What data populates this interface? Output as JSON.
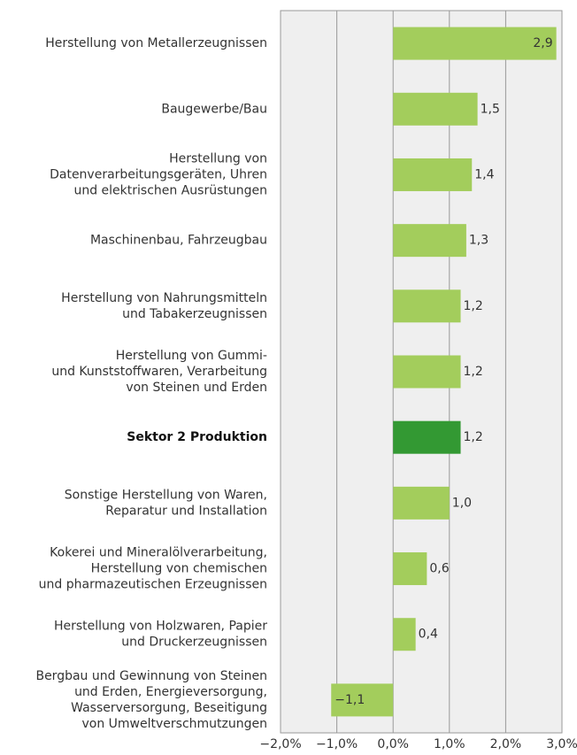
{
  "chart_data": {
    "type": "barh",
    "categories": [
      "Herstellung von Metallerzeugnissen",
      "Baugewerbe/Bau",
      "Herstellung von\nDatenverarbeitungsgeräten, Uhren\nund elektrischen Ausrüstungen",
      "Maschinenbau, Fahrzeugbau",
      "Herstellung von Nahrungsmitteln\nund Tabakerzeugnissen",
      "Herstellung von Gummi-\nund Kunststoffwaren, Verarbeitung\nvon Steinen und Erden",
      "Sektor 2 Produktion",
      "Sonstige Herstellung von Waren,\nReparatur und Installation",
      "Kokerei und Mineralölverarbeitung,\nHerstellung von chemischen\nund pharmazeutischen Erzeugnissen",
      "Herstellung von Holzwaren, Papier\nund Druckerzeugnissen",
      "Bergbau und Gewinnung von Steinen\nund Erden, Energieversorgung,\nWasserversorgung, Beseitigung\nvon Umweltverschmutzungen"
    ],
    "values": [
      2.9,
      1.5,
      1.4,
      1.3,
      1.2,
      1.2,
      1.2,
      1.0,
      0.6,
      0.4,
      -1.1
    ],
    "value_labels": [
      "2,9",
      "1,5",
      "1,4",
      "1,3",
      "1,2",
      "1,2",
      "1,2",
      "1,0",
      "0,6",
      "0,4",
      "−1,1"
    ],
    "color": "#a3cd5c",
    "highlight_color": "#339933",
    "highlight": 6,
    "xlim": [
      -2,
      3
    ],
    "xticks": [
      {
        "value": -2,
        "label": "−2,0%"
      },
      {
        "value": -1,
        "label": "−1,0%"
      },
      {
        "value": 0,
        "label": "0,0%"
      },
      {
        "value": 1,
        "label": "1,0%"
      },
      {
        "value": 2,
        "label": "2,0%"
      },
      {
        "value": 3,
        "label": "3,0%"
      }
    ],
    "grid": true
  }
}
